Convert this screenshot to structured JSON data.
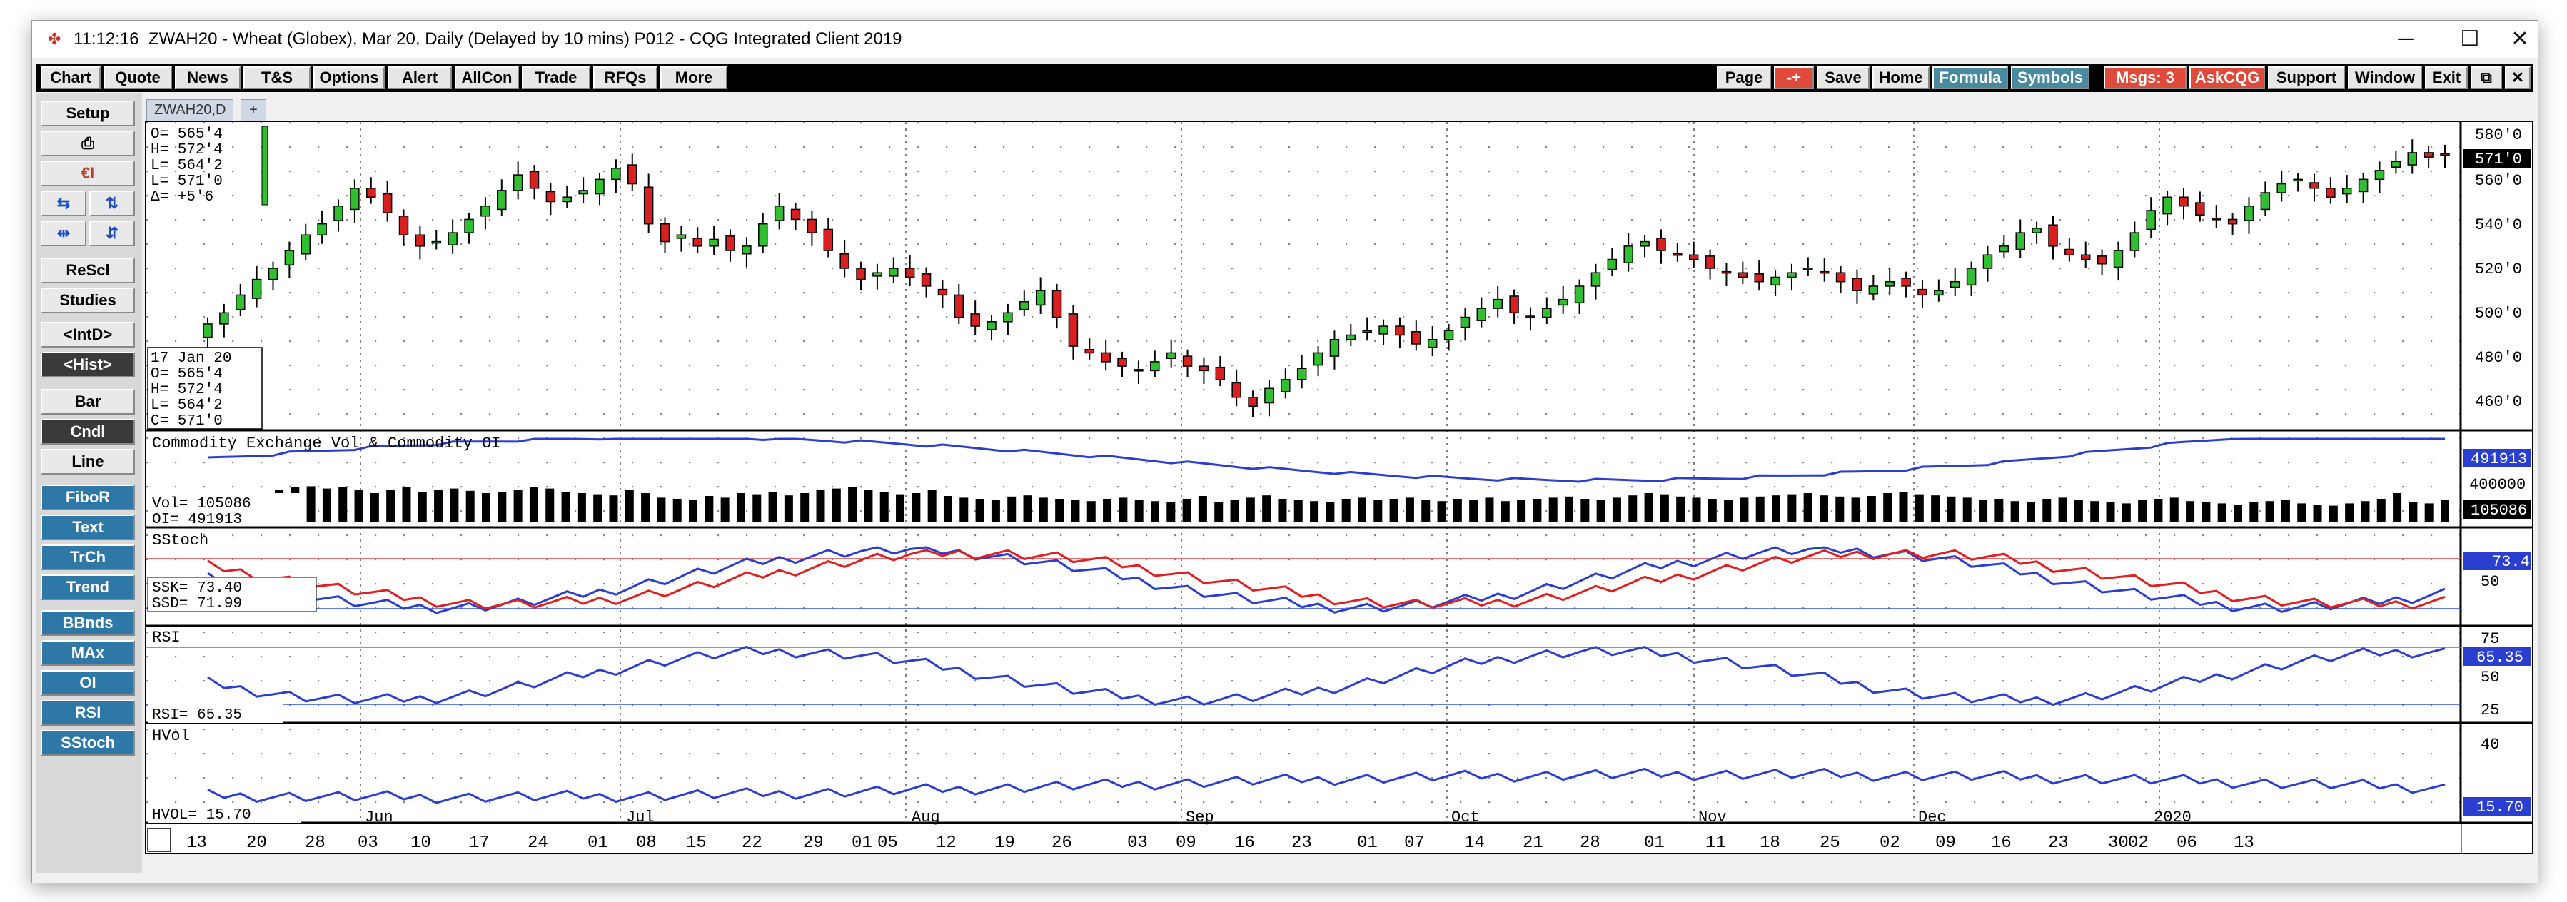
{
  "title": {
    "time": "11:12:16",
    "text": "ZWAH20 - Wheat (Globex), Mar 20, Daily (Delayed by 10 mins)   P012 - CQG Integrated Client 2019"
  },
  "window_controls": {
    "minimize": "─",
    "maximize": "☐",
    "close": "✕"
  },
  "menu": [
    "Chart",
    "Quote",
    "News",
    "T&S",
    "Options",
    "Alert",
    "AllCon",
    "Trade",
    "RFQs",
    "More"
  ],
  "right_menu": [
    "Page",
    "-+",
    "Save",
    "Home",
    "Formula",
    "Symbols",
    "Msgs: 3",
    "AskCQG",
    "Support",
    "Window",
    "Exit",
    "⧉",
    "✕"
  ],
  "side_buttons": [
    "Setup",
    "⎙",
    "€I",
    "⇆",
    "⇅",
    "⇹",
    "⇵",
    "ReScl",
    "Studies",
    "<IntD>",
    "<Hist>",
    "Bar",
    "Cndl",
    "Line",
    "FiboR",
    "Text",
    "TrCh",
    "Trend",
    "BBnds",
    "MAx",
    "OI",
    "RSI",
    "SStoch"
  ],
  "tab": {
    "label": "ZWAH20,D",
    "plus": "+"
  },
  "ohlc_top": [
    "O=   565'4",
    "H=   572'4",
    "L=   564'2",
    "L=   571'0",
    "Δ=    +5'6"
  ],
  "ohlc_box": [
    "17 Jan 20",
    "O=    565'4",
    "H=    572'4",
    "L=    564'2",
    "C=    571'0"
  ],
  "price_axis": [
    "580'0",
    "560'0",
    "540'0",
    "520'0",
    "500'0",
    "480'0",
    "460'0"
  ],
  "price_current": "571'0",
  "vol_panel": {
    "title": "Commodity Exchange Vol & Commodity OI",
    "vol": "Vol=   105086",
    "oi": "OI=    491913",
    "axis_mid": "400000",
    "oi_badge": "491913",
    "vol_badge": "105086"
  },
  "stoch_panel": {
    "title": "SStoch",
    "ssk": "SSK=     73.40",
    "ssd": "SSD=     71.99",
    "axis": "50",
    "badge": "73.4"
  },
  "rsi_panel": {
    "title": "RSI",
    "rsi": "RSI=   65.35",
    "axis": [
      "75",
      "50",
      "25"
    ],
    "badge": "65.35"
  },
  "hvol_panel": {
    "title": "HVol",
    "hvol": "HVOL=    15.70",
    "axis": "40",
    "badge": "15.70"
  },
  "months": [
    "Jun",
    "Jul",
    "Aug",
    "Sep",
    "Oct",
    "Nov",
    "Dec",
    "2020"
  ],
  "dates": [
    "13",
    "20",
    "28",
    "03",
    "10",
    "17",
    "24",
    "01",
    "08",
    "15",
    "22",
    "29",
    "01",
    "05",
    "12",
    "19",
    "26",
    "03",
    "09",
    "16",
    "23",
    "01",
    "07",
    "14",
    "21",
    "28",
    "01",
    "11",
    "18",
    "25",
    "02",
    "09",
    "16",
    "23",
    "30",
    "02",
    "06",
    "13"
  ],
  "chart_data": {
    "type": "candlestick",
    "title": "ZWAH20 - Wheat (Globex), Mar 20, Daily",
    "ylim": [
      450,
      585
    ],
    "close_series": [
      495,
      500,
      508,
      515,
      520,
      528,
      535,
      540,
      548,
      556,
      552,
      545,
      535,
      530,
      532,
      536,
      542,
      548,
      555,
      562,
      556,
      550,
      552,
      555,
      560,
      565,
      558,
      540,
      532,
      535,
      530,
      533,
      528,
      530,
      540,
      548,
      542,
      536,
      528,
      520,
      515,
      518,
      520,
      516,
      512,
      508,
      498,
      494,
      496,
      500,
      505,
      510,
      498,
      485,
      482,
      478,
      476,
      474,
      478,
      482,
      476,
      474,
      470,
      462,
      458,
      466,
      470,
      475,
      482,
      488,
      490,
      492,
      494,
      490,
      486,
      488,
      492,
      498,
      502,
      506,
      500,
      498,
      502,
      506,
      512,
      518,
      524,
      530,
      532,
      528,
      526,
      524,
      520,
      518,
      516,
      514,
      516,
      518,
      520,
      518,
      514,
      510,
      512,
      514,
      512,
      508,
      510,
      514,
      520,
      526,
      530,
      536,
      538,
      530,
      526,
      524,
      522,
      528,
      536,
      546,
      552,
      548,
      544,
      542,
      540,
      548,
      554,
      558,
      560,
      556,
      552,
      556,
      560,
      564,
      568,
      572,
      570,
      571
    ],
    "volume_series": [
      0.55,
      0.6,
      0.62,
      0.58,
      0.6,
      0.55,
      0.5,
      0.55,
      0.6,
      0.52,
      0.56,
      0.58,
      0.54,
      0.5,
      0.52,
      0.55,
      0.6,
      0.58,
      0.52,
      0.5,
      0.48,
      0.46,
      0.55,
      0.5,
      0.42,
      0.4,
      0.38,
      0.45,
      0.42,
      0.5,
      0.48,
      0.52,
      0.46,
      0.5,
      0.55,
      0.58,
      0.6,
      0.56,
      0.52,
      0.48,
      0.5,
      0.55,
      0.45,
      0.42,
      0.4,
      0.38,
      0.44,
      0.46,
      0.42,
      0.4,
      0.38,
      0.36,
      0.4,
      0.42,
      0.38,
      0.36,
      0.34,
      0.4,
      0.45,
      0.35,
      0.38,
      0.42,
      0.46,
      0.4,
      0.38,
      0.36,
      0.34,
      0.4,
      0.42,
      0.38,
      0.4,
      0.42,
      0.38,
      0.36,
      0.4,
      0.38,
      0.42,
      0.36,
      0.38,
      0.4,
      0.42,
      0.44,
      0.4,
      0.38,
      0.42,
      0.46,
      0.5,
      0.48,
      0.44,
      0.42,
      0.4,
      0.38,
      0.42,
      0.44,
      0.46,
      0.48,
      0.5,
      0.46,
      0.44,
      0.42,
      0.45,
      0.5,
      0.52,
      0.48,
      0.46,
      0.44,
      0.42,
      0.38,
      0.4,
      0.36,
      0.34,
      0.4,
      0.42,
      0.38,
      0.36,
      0.34,
      0.32,
      0.38,
      0.4,
      0.42,
      0.36,
      0.34,
      0.32,
      0.3,
      0.34,
      0.36,
      0.38,
      0.32,
      0.3,
      0.28,
      0.32,
      0.36,
      0.4,
      0.5,
      0.34,
      0.32,
      0.38
    ]
  }
}
